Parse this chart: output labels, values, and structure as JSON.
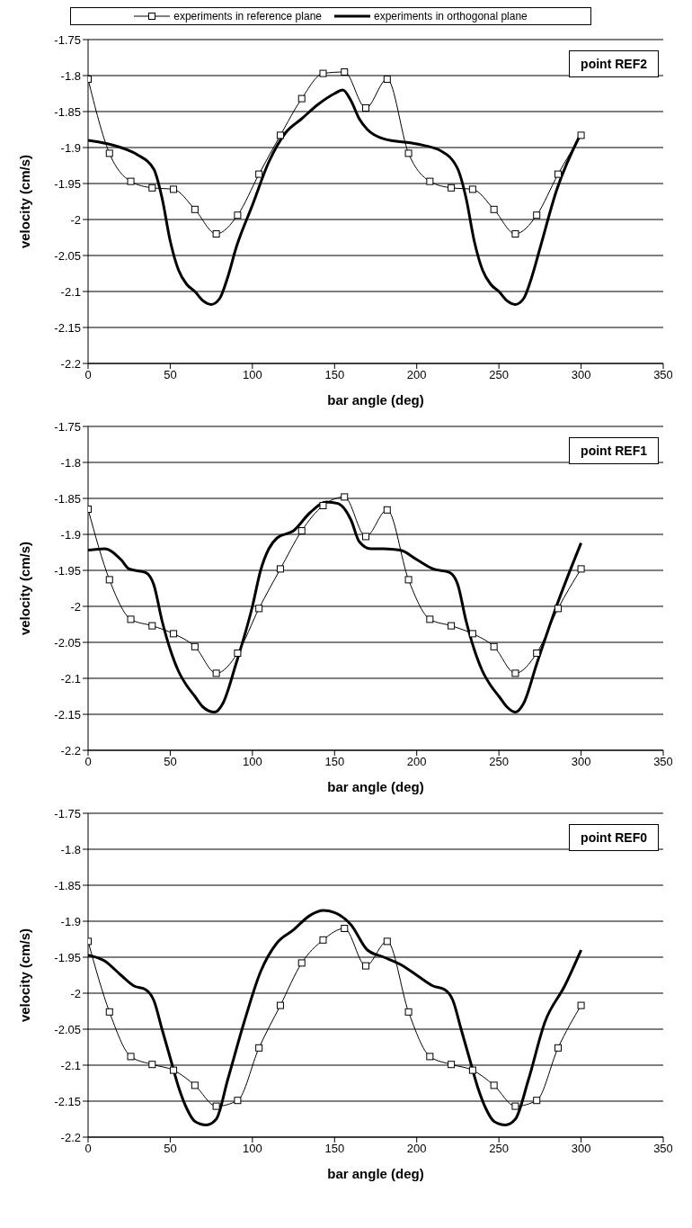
{
  "chart_data": [
    {
      "type": "line",
      "legend": "top",
      "grid": "y",
      "xlabel": "bar angle (deg)",
      "ylabel": "velocity (cm/s)",
      "annotations": [
        "point REF2"
      ],
      "xlim": [
        0,
        350
      ],
      "xticks": [
        0,
        50,
        100,
        150,
        200,
        250,
        300,
        350
      ],
      "ylim": [
        -2.2,
        -1.75
      ],
      "yticks": [
        -2.2,
        -2.15,
        -2.1,
        -2.05,
        -2,
        -1.95,
        -1.9,
        -1.85,
        -1.8,
        -1.75
      ],
      "series": [
        {
          "name": "experiments in reference plane",
          "color": "#000000",
          "marker": "square",
          "x": [
            0,
            13,
            26,
            39,
            52,
            65,
            78,
            91,
            104,
            117,
            130,
            143,
            156,
            169,
            182,
            195,
            208,
            221,
            234,
            247,
            260,
            273,
            286,
            300
          ],
          "values": [
            -1.805,
            -1.908,
            -1.947,
            -1.956,
            -1.958,
            -1.986,
            -2.02,
            -1.994,
            -1.937,
            -1.883,
            -1.832,
            -1.797,
            -1.795,
            -1.845,
            -1.805,
            -1.908,
            -1.947,
            -1.956,
            -1.958,
            -1.986,
            -2.02,
            -1.994,
            -1.937,
            -1.883
          ]
        },
        {
          "name": "experiments in orthogonal plane",
          "color": "#000000",
          "marker": "none",
          "x": [
            0,
            20,
            30,
            40,
            45,
            50,
            55,
            60,
            65,
            70,
            75,
            80,
            85,
            90,
            100,
            110,
            120,
            130,
            140,
            150,
            155,
            160,
            165,
            170,
            180,
            200,
            215,
            225,
            230,
            235,
            240,
            245,
            250,
            255,
            260,
            265,
            270,
            275,
            285,
            300
          ],
          "values": [
            -1.89,
            -1.9,
            -1.91,
            -1.93,
            -1.97,
            -2.03,
            -2.07,
            -2.09,
            -2.1,
            -2.113,
            -2.118,
            -2.11,
            -2.08,
            -2.04,
            -1.98,
            -1.92,
            -1.88,
            -1.86,
            -1.84,
            -1.825,
            -1.82,
            -1.835,
            -1.86,
            -1.875,
            -1.888,
            -1.895,
            -1.905,
            -1.93,
            -1.97,
            -2.03,
            -2.07,
            -2.09,
            -2.1,
            -2.113,
            -2.118,
            -2.11,
            -2.08,
            -2.04,
            -1.96,
            -1.88
          ]
        }
      ]
    },
    {
      "type": "line",
      "grid": "y",
      "xlabel": "bar angle (deg)",
      "ylabel": "velocity (cm/s)",
      "annotations": [
        "point REF1"
      ],
      "xlim": [
        0,
        350
      ],
      "xticks": [
        0,
        50,
        100,
        150,
        200,
        250,
        300,
        350
      ],
      "ylim": [
        -2.2,
        -1.75
      ],
      "yticks": [
        -2.2,
        -2.15,
        -2.1,
        -2.05,
        -2,
        -1.95,
        -1.9,
        -1.85,
        -1.8,
        -1.75
      ],
      "series": [
        {
          "color": "#000000",
          "marker": "square",
          "x": [
            0,
            13,
            26,
            39,
            52,
            65,
            78,
            91,
            104,
            117,
            130,
            143,
            156,
            169,
            182,
            195,
            208,
            221,
            234,
            247,
            260,
            273,
            286,
            300
          ],
          "values": [
            -1.865,
            -1.963,
            -2.018,
            -2.027,
            -2.038,
            -2.056,
            -2.093,
            -2.065,
            -2.003,
            -1.948,
            -1.895,
            -1.86,
            -1.848,
            -1.903,
            -1.866,
            -1.963,
            -2.018,
            -2.027,
            -2.038,
            -2.056,
            -2.093,
            -2.065,
            -2.003,
            -1.948
          ]
        },
        {
          "color": "#000000",
          "marker": "none",
          "x": [
            0,
            10,
            20,
            25,
            35,
            40,
            45,
            50,
            55,
            60,
            65,
            70,
            77,
            82,
            90,
            100,
            105,
            110,
            115,
            125,
            135,
            145,
            152,
            160,
            165,
            172,
            180,
            190,
            200,
            210,
            220,
            225,
            230,
            235,
            240,
            245,
            250,
            255,
            260,
            265,
            273,
            285,
            300
          ],
          "values": [
            -1.922,
            -1.92,
            -1.935,
            -1.948,
            -1.953,
            -1.97,
            -2.02,
            -2.06,
            -2.09,
            -2.11,
            -2.125,
            -2.14,
            -2.147,
            -2.135,
            -2.08,
            -2.0,
            -1.95,
            -1.92,
            -1.905,
            -1.895,
            -1.87,
            -1.855,
            -1.857,
            -1.88,
            -1.91,
            -1.92,
            -1.92,
            -1.922,
            -1.935,
            -1.948,
            -1.953,
            -1.97,
            -2.02,
            -2.06,
            -2.09,
            -2.11,
            -2.125,
            -2.14,
            -2.147,
            -2.135,
            -2.08,
            -2.0,
            -1.912
          ]
        }
      ]
    },
    {
      "type": "line",
      "grid": "y",
      "xlabel": "bar angle (deg)",
      "ylabel": "velocity (cm/s)",
      "annotations": [
        "point REF0"
      ],
      "xlim": [
        0,
        350
      ],
      "xticks": [
        0,
        50,
        100,
        150,
        200,
        250,
        300,
        350
      ],
      "ylim": [
        -2.2,
        -1.75
      ],
      "yticks": [
        -2.2,
        -2.15,
        -2.1,
        -2.05,
        -2,
        -1.95,
        -1.9,
        -1.85,
        -1.8,
        -1.75
      ],
      "series": [
        {
          "color": "#000000",
          "marker": "square",
          "x": [
            0,
            13,
            26,
            39,
            52,
            65,
            78,
            91,
            104,
            117,
            130,
            143,
            156,
            169,
            182,
            195,
            208,
            221,
            234,
            247,
            260,
            273,
            286,
            300
          ],
          "values": [
            -1.928,
            -2.026,
            -2.088,
            -2.099,
            -2.107,
            -2.128,
            -2.157,
            -2.149,
            -2.076,
            -2.017,
            -1.958,
            -1.926,
            -1.91,
            -1.962,
            -1.928,
            -2.026,
            -2.088,
            -2.099,
            -2.107,
            -2.128,
            -2.157,
            -2.149,
            -2.076,
            -2.017
          ]
        },
        {
          "color": "#000000",
          "marker": "none",
          "x": [
            0,
            10,
            20,
            28,
            35,
            40,
            45,
            50,
            55,
            60,
            65,
            72,
            78,
            85,
            95,
            105,
            115,
            125,
            135,
            143,
            150,
            160,
            170,
            180,
            190,
            200,
            210,
            217,
            222,
            227,
            232,
            237,
            242,
            247,
            254,
            260,
            268,
            278,
            290,
            300
          ],
          "values": [
            -1.947,
            -1.955,
            -1.975,
            -1.99,
            -1.995,
            -2.01,
            -2.05,
            -2.09,
            -2.13,
            -2.16,
            -2.178,
            -2.183,
            -2.175,
            -2.12,
            -2.04,
            -1.97,
            -1.93,
            -1.912,
            -1.892,
            -1.885,
            -1.888,
            -1.905,
            -1.94,
            -1.95,
            -1.96,
            -1.975,
            -1.99,
            -1.995,
            -2.01,
            -2.05,
            -2.09,
            -2.13,
            -2.16,
            -2.178,
            -2.183,
            -2.175,
            -2.12,
            -2.04,
            -1.99,
            -1.94
          ]
        }
      ]
    }
  ]
}
